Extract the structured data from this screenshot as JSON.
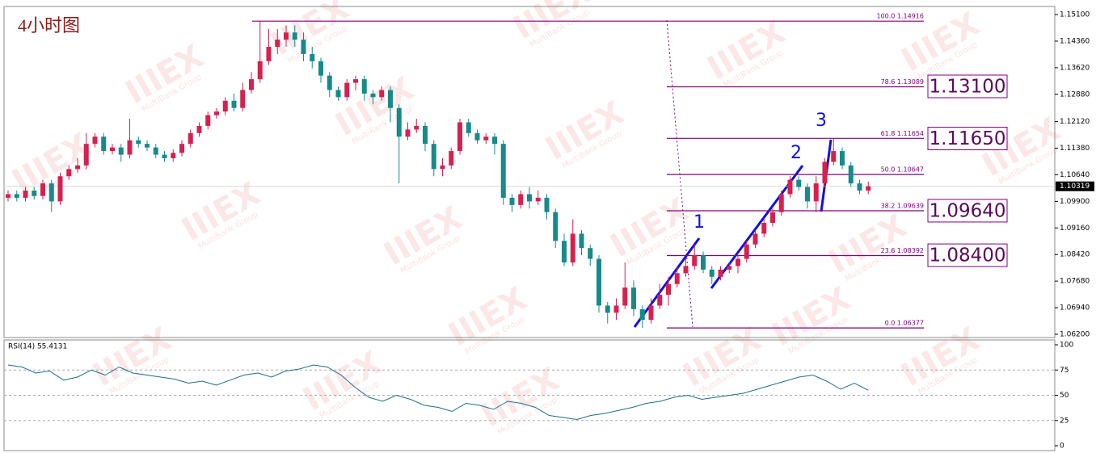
{
  "chart_data": {
    "type": "candlestick",
    "title": "4小时图",
    "watermark": [
      "IIIEX",
      "MultiBank Group"
    ],
    "up_color": "#d6204f",
    "down_color": "#178a8a",
    "ylim": [
      1.0611,
      1.15325
    ],
    "yticks": [
      {
        "value": 1.151,
        "label": "1.15100"
      },
      {
        "value": 1.1436,
        "label": "1.14360"
      },
      {
        "value": 1.1362,
        "label": "1.13620"
      },
      {
        "value": 1.1288,
        "label": "1.12880"
      },
      {
        "value": 1.1212,
        "label": "1.12120"
      },
      {
        "value": 1.1138,
        "label": "1.11380"
      },
      {
        "value": 1.1064,
        "label": "1.10640"
      },
      {
        "value": 1.099,
        "label": "1.09900"
      },
      {
        "value": 1.0916,
        "label": "1.09160"
      },
      {
        "value": 1.0842,
        "label": "1.08420"
      },
      {
        "value": 1.0768,
        "label": "1.07680"
      },
      {
        "value": 1.0694,
        "label": "1.06940"
      },
      {
        "value": 1.062,
        "label": "1.06200"
      }
    ],
    "current_price": {
      "value": 1.10319,
      "label": "1.10319"
    },
    "open": [
      1.1,
      1.101,
      1.1,
      1.102,
      1.1005,
      1.104,
      1.099,
      1.106,
      1.108,
      1.109,
      1.115,
      1.117,
      1.113,
      1.114,
      1.112,
      1.116,
      1.115,
      1.114,
      1.112,
      1.111,
      1.1125,
      1.115,
      1.118,
      1.12,
      1.123,
      1.124,
      1.127,
      1.125,
      1.13,
      1.133,
      1.138,
      1.142,
      1.144,
      1.146,
      1.144,
      1.14,
      1.138,
      1.134,
      1.13,
      1.128,
      1.132,
      1.133,
      1.129,
      1.128,
      1.13,
      1.125,
      1.117,
      1.119,
      1.12,
      1.115,
      1.108,
      1.109,
      1.113,
      1.121,
      1.118,
      1.116,
      1.117,
      1.115,
      1.1,
      1.098,
      1.101,
      1.099,
      1.1,
      1.096,
      1.088,
      1.082,
      1.09,
      1.086,
      1.083,
      1.07,
      1.068,
      1.07,
      1.075,
      1.069,
      1.066,
      1.07,
      1.073,
      1.076,
      1.079,
      1.081,
      1.084,
      1.08,
      1.078,
      1.08,
      1.081,
      1.083,
      1.087,
      1.09,
      1.093,
      1.096,
      1.101,
      1.105,
      1.103,
      1.099,
      1.104,
      1.11,
      1.113,
      1.109,
      1.104,
      1.102
    ],
    "high": [
      1.102,
      1.102,
      1.103,
      1.103,
      1.105,
      1.105,
      1.107,
      1.109,
      1.111,
      1.118,
      1.118,
      1.118,
      1.115,
      1.115,
      1.122,
      1.117,
      1.116,
      1.115,
      1.113,
      1.1135,
      1.116,
      1.119,
      1.121,
      1.124,
      1.125,
      1.128,
      1.129,
      1.132,
      1.135,
      1.1492,
      1.147,
      1.147,
      1.148,
      1.148,
      1.146,
      1.142,
      1.139,
      1.135,
      1.131,
      1.133,
      1.134,
      1.134,
      1.13,
      1.131,
      1.131,
      1.126,
      1.121,
      1.122,
      1.121,
      1.116,
      1.111,
      1.114,
      1.122,
      1.122,
      1.119,
      1.118,
      1.118,
      1.116,
      1.101,
      1.102,
      1.103,
      1.102,
      1.101,
      1.097,
      1.09,
      1.094,
      1.091,
      1.087,
      1.084,
      1.071,
      1.072,
      1.082,
      1.077,
      1.07,
      1.072,
      1.076,
      1.078,
      1.081,
      1.083,
      1.087,
      1.085,
      1.081,
      1.081,
      1.082,
      1.084,
      1.088,
      1.091,
      1.094,
      1.097,
      1.102,
      1.106,
      1.106,
      1.104,
      1.106,
      1.111,
      1.1165,
      1.114,
      1.11,
      1.105,
      1.1045
    ],
    "low": [
      1.099,
      1.099,
      1.099,
      1.0995,
      1.0995,
      1.096,
      1.098,
      1.105,
      1.107,
      1.108,
      1.114,
      1.112,
      1.112,
      1.11,
      1.111,
      1.114,
      1.113,
      1.111,
      1.11,
      1.11,
      1.1115,
      1.114,
      1.117,
      1.119,
      1.122,
      1.123,
      1.124,
      1.124,
      1.129,
      1.132,
      1.137,
      1.14,
      1.142,
      1.142,
      1.138,
      1.136,
      1.132,
      1.128,
      1.127,
      1.127,
      1.13,
      1.127,
      1.126,
      1.127,
      1.121,
      1.104,
      1.116,
      1.118,
      1.113,
      1.106,
      1.106,
      1.108,
      1.112,
      1.117,
      1.115,
      1.115,
      1.112,
      1.098,
      1.096,
      1.097,
      1.097,
      1.098,
      1.094,
      1.086,
      1.081,
      1.081,
      1.084,
      1.081,
      1.068,
      1.065,
      1.066,
      1.069,
      1.067,
      1.0638,
      1.065,
      1.069,
      1.07,
      1.075,
      1.078,
      1.08,
      1.079,
      1.076,
      1.077,
      1.079,
      1.079,
      1.082,
      1.086,
      1.089,
      1.092,
      1.095,
      1.1,
      1.102,
      1.097,
      1.096,
      1.103,
      1.109,
      1.108,
      1.103,
      1.101,
      1.101
    ],
    "close": [
      1.101,
      1.1,
      1.102,
      1.1005,
      1.104,
      1.099,
      1.106,
      1.108,
      1.109,
      1.115,
      1.117,
      1.113,
      1.114,
      1.112,
      1.116,
      1.115,
      1.114,
      1.112,
      1.111,
      1.1125,
      1.115,
      1.118,
      1.12,
      1.123,
      1.124,
      1.127,
      1.125,
      1.13,
      1.133,
      1.138,
      1.142,
      1.144,
      1.146,
      1.144,
      1.14,
      1.138,
      1.134,
      1.13,
      1.128,
      1.132,
      1.133,
      1.129,
      1.128,
      1.13,
      1.125,
      1.117,
      1.119,
      1.12,
      1.115,
      1.108,
      1.109,
      1.113,
      1.121,
      1.118,
      1.116,
      1.117,
      1.115,
      1.1,
      1.098,
      1.101,
      1.099,
      1.1,
      1.096,
      1.088,
      1.082,
      1.09,
      1.086,
      1.083,
      1.07,
      1.068,
      1.07,
      1.075,
      1.069,
      1.066,
      1.07,
      1.073,
      1.076,
      1.079,
      1.081,
      1.084,
      1.08,
      1.078,
      1.08,
      1.081,
      1.083,
      1.087,
      1.09,
      1.093,
      1.096,
      1.101,
      1.105,
      1.103,
      1.099,
      1.104,
      1.11,
      1.113,
      1.109,
      1.104,
      1.102,
      1.1032
    ],
    "fib_color": "#800080",
    "fib_levels": [
      {
        "value": 1.14916,
        "label": "100.0  1.14916"
      },
      {
        "value": 1.13089,
        "label": "78.6  1.13089"
      },
      {
        "value": 1.11654,
        "label": "61.8  1.11654"
      },
      {
        "value": 1.10647,
        "label": "50.0  1.10647"
      },
      {
        "value": 1.09639,
        "label": "38.2  1.09639"
      },
      {
        "value": 1.08392,
        "label": "23.6  1.08392"
      },
      {
        "value": 1.06377,
        "label": "0.0  1.06377"
      }
    ],
    "targets": [
      {
        "value": 1.131,
        "label": "1.13100"
      },
      {
        "value": 1.1165,
        "label": "1.11650"
      },
      {
        "value": 1.0964,
        "label": "1.09640"
      },
      {
        "value": 1.084,
        "label": "1.08400"
      }
    ],
    "waves": [
      "1",
      "2",
      "3"
    ],
    "rsi": {
      "label": "RSI(14) 55.4131",
      "color": "#1c6e8c",
      "ylim": [
        0,
        100
      ],
      "yticks": [
        100,
        75,
        50,
        25,
        0
      ],
      "levels": [
        75,
        50,
        25
      ],
      "values": [
        80,
        78,
        72,
        74,
        65,
        68,
        75,
        70,
        78,
        72,
        70,
        68,
        66,
        62,
        64,
        60,
        65,
        70,
        72,
        68,
        74,
        76,
        80,
        78,
        70,
        58,
        48,
        44,
        50,
        46,
        40,
        38,
        34,
        42,
        40,
        36,
        44,
        42,
        38,
        30,
        28,
        26,
        30,
        32,
        35,
        38,
        42,
        44,
        48,
        50,
        46,
        48,
        50,
        52,
        56,
        60,
        64,
        68,
        70,
        64,
        56,
        62,
        55
      ]
    }
  }
}
